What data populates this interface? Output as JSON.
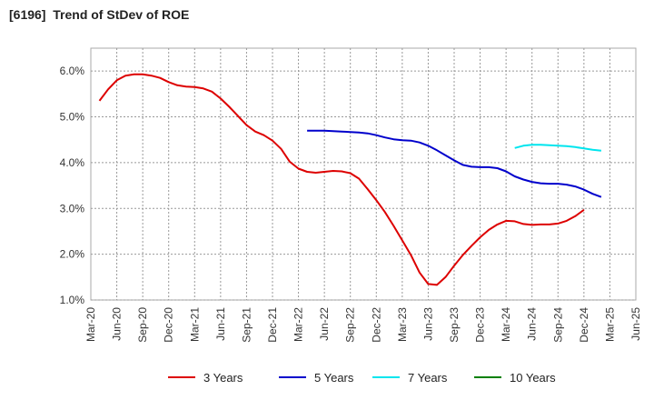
{
  "chart_data": {
    "type": "line",
    "title": "[6196]  Trend of StDev of ROE",
    "xlabel": "",
    "ylabel": "",
    "x_ticks": [
      "Mar-20",
      "Jun-20",
      "Sep-20",
      "Dec-20",
      "Mar-21",
      "Jun-21",
      "Sep-21",
      "Dec-21",
      "Mar-22",
      "Jun-22",
      "Sep-22",
      "Dec-22",
      "Mar-23",
      "Jun-23",
      "Sep-23",
      "Dec-23",
      "Mar-24",
      "Jun-24",
      "Sep-24",
      "Dec-24",
      "Mar-25",
      "Jun-25"
    ],
    "y_ticks": [
      "1.0%",
      "2.0%",
      "3.0%",
      "4.0%",
      "5.0%",
      "6.0%"
    ],
    "ylim": [
      1.0,
      6.5
    ],
    "grid": "dashed",
    "legend_position": "bottom",
    "series": [
      {
        "name": "3 Years",
        "color": "#dd0000",
        "start_index": 1,
        "values": [
          5.35,
          5.6,
          5.8,
          5.9,
          5.93,
          5.93,
          5.9,
          5.85,
          5.76,
          5.69,
          5.66,
          5.65,
          5.62,
          5.55,
          5.4,
          5.22,
          5.02,
          4.82,
          4.68,
          4.6,
          4.48,
          4.3,
          4.02,
          3.87,
          3.8,
          3.78,
          3.8,
          3.82,
          3.81,
          3.77,
          3.65,
          3.42,
          3.18,
          2.92,
          2.62,
          2.3,
          1.98,
          1.6,
          1.35,
          1.33,
          1.5,
          1.75,
          1.98,
          2.18,
          2.37,
          2.53,
          2.65,
          2.73,
          2.72,
          2.66,
          2.64,
          2.65,
          2.65,
          2.67,
          2.73,
          2.83,
          2.97
        ]
      },
      {
        "name": "5 Years",
        "color": "#0000cc",
        "start_index": 25,
        "values": [
          4.7,
          4.7,
          4.7,
          4.69,
          4.68,
          4.67,
          4.66,
          4.64,
          4.6,
          4.55,
          4.51,
          4.49,
          4.48,
          4.44,
          4.37,
          4.27,
          4.16,
          4.05,
          3.95,
          3.91,
          3.9,
          3.9,
          3.88,
          3.81,
          3.7,
          3.63,
          3.58,
          3.55,
          3.54,
          3.54,
          3.52,
          3.48,
          3.41,
          3.32,
          3.25
        ]
      },
      {
        "name": "7 Years",
        "color": "#00e5ee",
        "start_index": 49,
        "values": [
          4.32,
          4.37,
          4.39,
          4.39,
          4.38,
          4.37,
          4.36,
          4.34,
          4.31,
          4.28,
          4.26
        ]
      },
      {
        "name": "10 Years",
        "color": "#008000",
        "start_index": 0,
        "values": []
      }
    ]
  }
}
